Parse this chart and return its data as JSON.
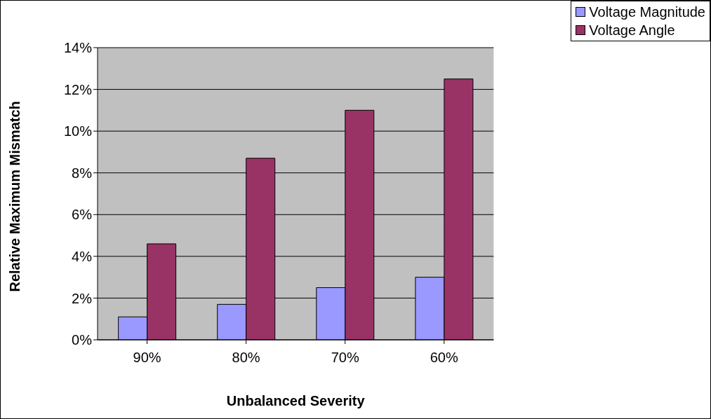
{
  "chart_data": {
    "type": "bar",
    "xlabel": "Unbalanced Severity",
    "ylabel": "Relative Maximum Mismatch",
    "categories": [
      "90%",
      "80%",
      "70%",
      "60%"
    ],
    "series": [
      {
        "name": "Voltage Magnitude",
        "color": "#9999ff",
        "values": [
          1.1,
          1.7,
          2.5,
          3.0
        ]
      },
      {
        "name": "Voltage Angle",
        "color": "#993366",
        "values": [
          4.6,
          8.7,
          11.0,
          12.5
        ]
      }
    ],
    "ylim": [
      0,
      14
    ],
    "yticks": [
      {
        "value": 0,
        "label": "0%"
      },
      {
        "value": 2,
        "label": "2%"
      },
      {
        "value": 4,
        "label": "4%"
      },
      {
        "value": 6,
        "label": "6%"
      },
      {
        "value": 8,
        "label": "8%"
      },
      {
        "value": 10,
        "label": "10%"
      },
      {
        "value": 12,
        "label": "12%"
      },
      {
        "value": 14,
        "label": "14%"
      }
    ],
    "grid": "y",
    "legend": "top right"
  }
}
